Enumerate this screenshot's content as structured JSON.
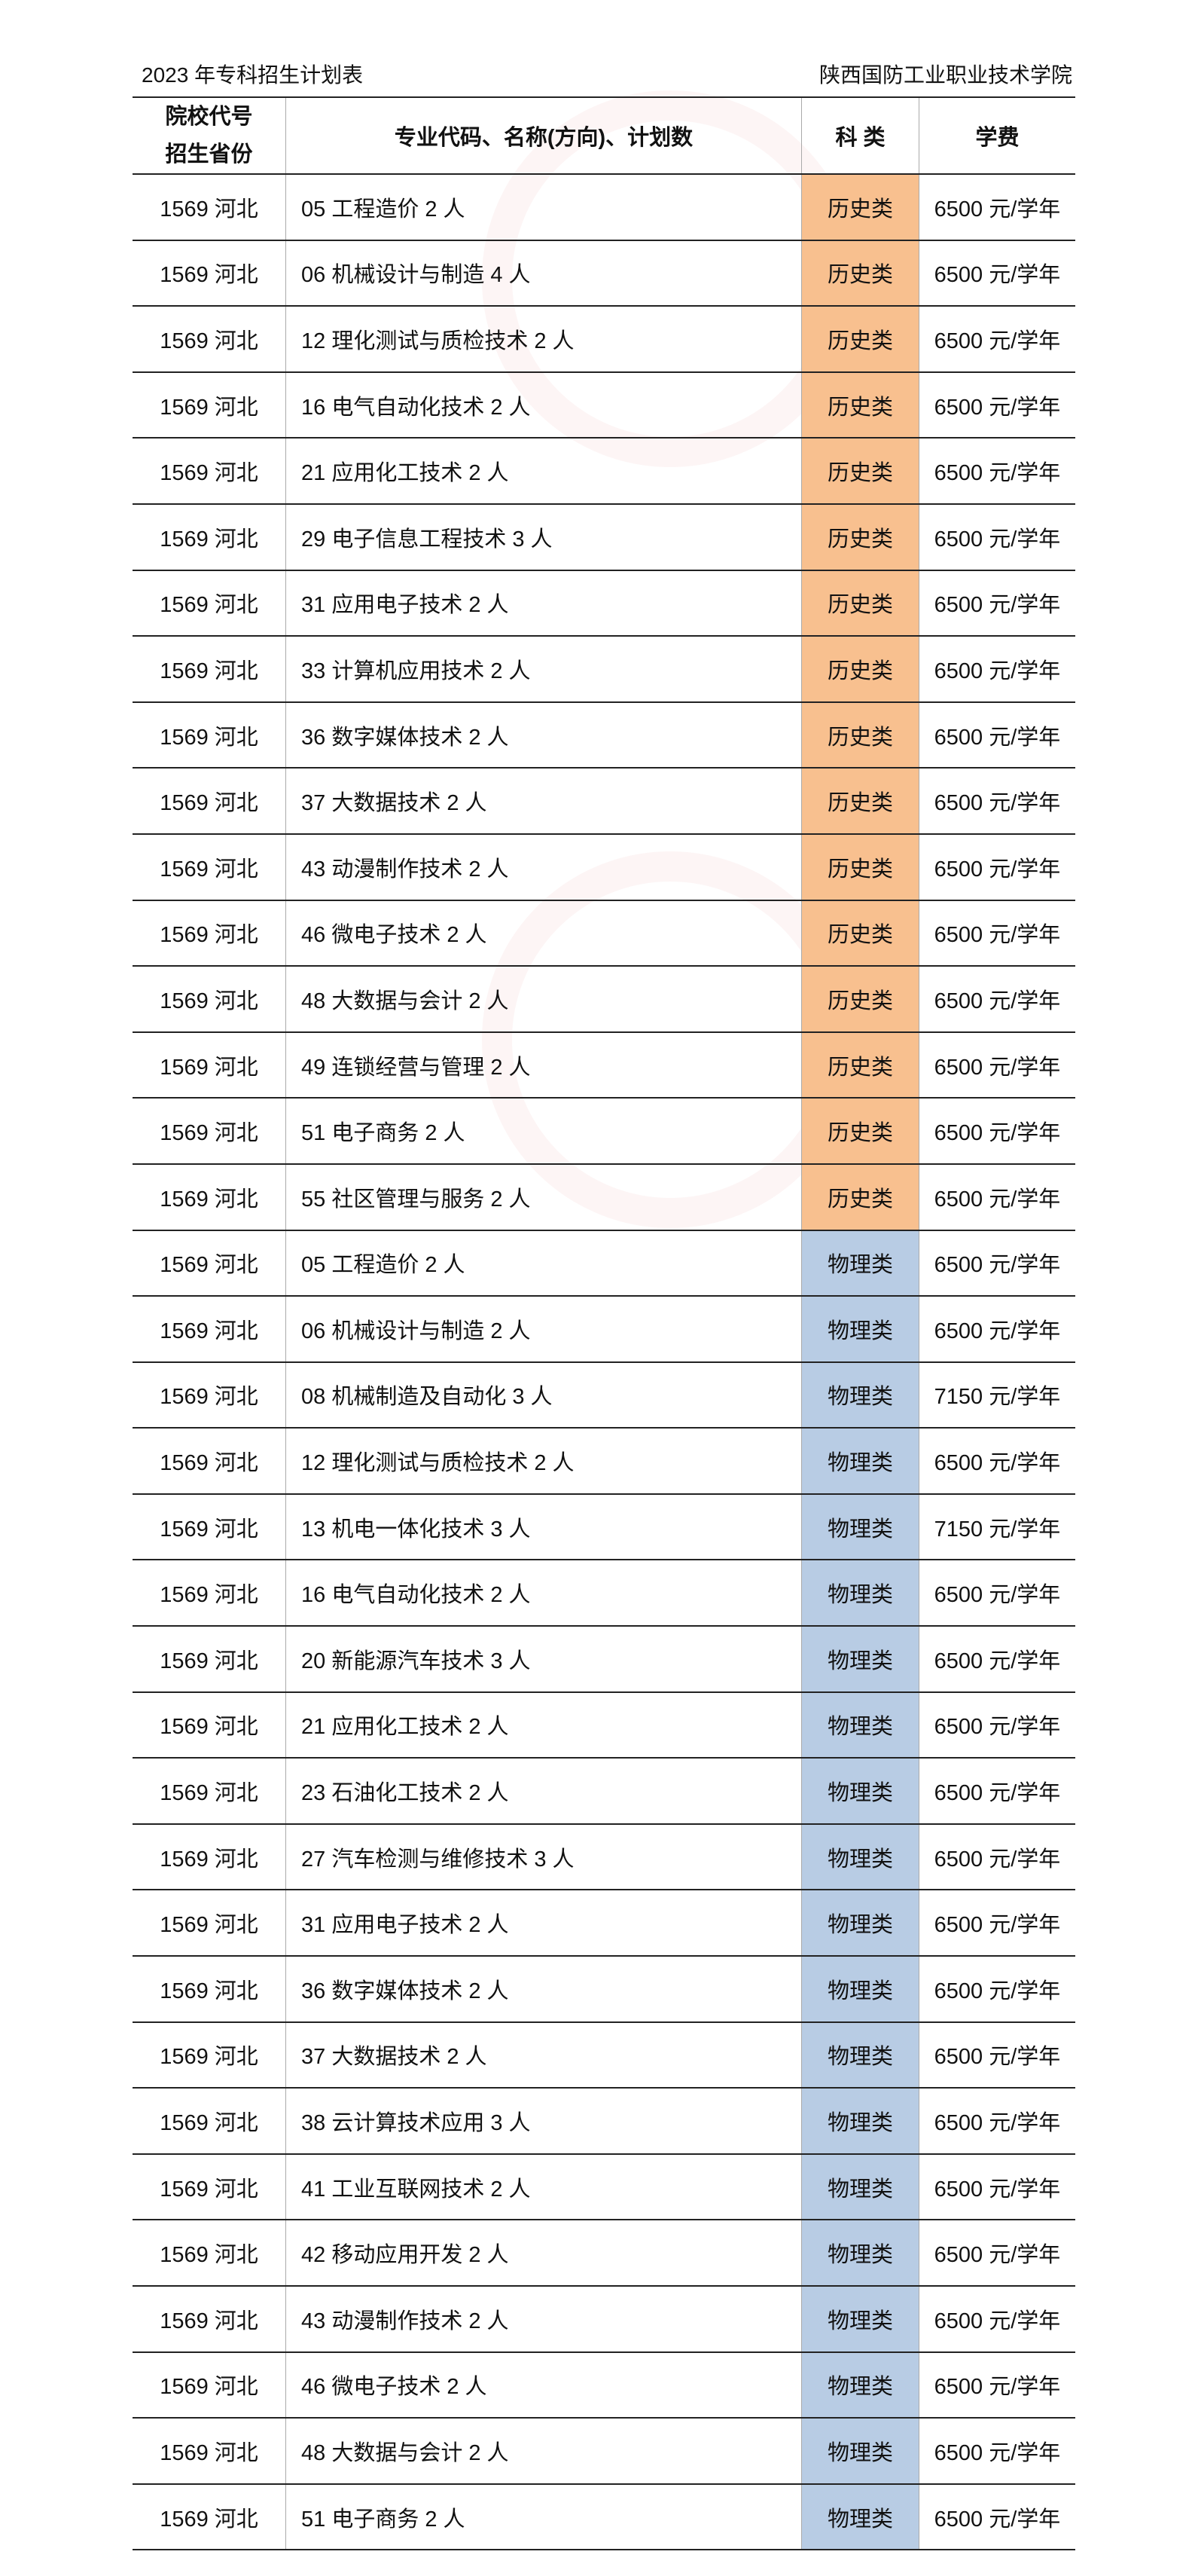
{
  "header": {
    "title": "2023 年专科招生计划表",
    "school": "陕西国防工业职业技术学院"
  },
  "table": {
    "columns": [
      "院校代号\n招生省份",
      "专业代码、名称(方向)、计划数",
      "科 类",
      "学费"
    ],
    "col1_line1": "院校代号",
    "col1_line2": "招生省份",
    "colors": {
      "历史类": "#F8C08F",
      "物理类": "#B8CCE4"
    },
    "rows": [
      [
        "1569 河北",
        "05 工程造价 2 人",
        "历史类",
        "6500 元/学年"
      ],
      [
        "1569 河北",
        "06 机械设计与制造 4 人",
        "历史类",
        "6500 元/学年"
      ],
      [
        "1569 河北",
        "12 理化测试与质检技术 2 人",
        "历史类",
        "6500 元/学年"
      ],
      [
        "1569 河北",
        "16 电气自动化技术 2 人",
        "历史类",
        "6500 元/学年"
      ],
      [
        "1569 河北",
        "21 应用化工技术 2 人",
        "历史类",
        "6500 元/学年"
      ],
      [
        "1569 河北",
        "29 电子信息工程技术 3 人",
        "历史类",
        "6500 元/学年"
      ],
      [
        "1569 河北",
        "31 应用电子技术 2 人",
        "历史类",
        "6500 元/学年"
      ],
      [
        "1569 河北",
        "33 计算机应用技术 2 人",
        "历史类",
        "6500 元/学年"
      ],
      [
        "1569 河北",
        "36 数字媒体技术 2 人",
        "历史类",
        "6500 元/学年"
      ],
      [
        "1569 河北",
        "37 大数据技术 2 人",
        "历史类",
        "6500 元/学年"
      ],
      [
        "1569 河北",
        "43 动漫制作技术 2 人",
        "历史类",
        "6500 元/学年"
      ],
      [
        "1569 河北",
        "46 微电子技术 2 人",
        "历史类",
        "6500 元/学年"
      ],
      [
        "1569 河北",
        "48 大数据与会计 2 人",
        "历史类",
        "6500 元/学年"
      ],
      [
        "1569 河北",
        "49 连锁经营与管理 2 人",
        "历史类",
        "6500 元/学年"
      ],
      [
        "1569 河北",
        "51 电子商务 2 人",
        "历史类",
        "6500 元/学年"
      ],
      [
        "1569 河北",
        "55 社区管理与服务 2 人",
        "历史类",
        "6500 元/学年"
      ],
      [
        "1569 河北",
        "05 工程造价 2 人",
        "物理类",
        "6500 元/学年"
      ],
      [
        "1569 河北",
        "06 机械设计与制造 2 人",
        "物理类",
        "6500 元/学年"
      ],
      [
        "1569 河北",
        "08 机械制造及自动化 3 人",
        "物理类",
        "7150 元/学年"
      ],
      [
        "1569 河北",
        "12 理化测试与质检技术 2 人",
        "物理类",
        "6500 元/学年"
      ],
      [
        "1569 河北",
        "13 机电一体化技术 3 人",
        "物理类",
        "7150 元/学年"
      ],
      [
        "1569 河北",
        "16 电气自动化技术 2 人",
        "物理类",
        "6500 元/学年"
      ],
      [
        "1569 河北",
        "20 新能源汽车技术 3 人",
        "物理类",
        "6500 元/学年"
      ],
      [
        "1569 河北",
        "21 应用化工技术 2 人",
        "物理类",
        "6500 元/学年"
      ],
      [
        "1569 河北",
        "23 石油化工技术 2 人",
        "物理类",
        "6500 元/学年"
      ],
      [
        "1569 河北",
        "27 汽车检测与维修技术 3 人",
        "物理类",
        "6500 元/学年"
      ],
      [
        "1569 河北",
        "31 应用电子技术 2 人",
        "物理类",
        "6500 元/学年"
      ],
      [
        "1569 河北",
        "36 数字媒体技术 2 人",
        "物理类",
        "6500 元/学年"
      ],
      [
        "1569 河北",
        "37 大数据技术 2 人",
        "物理类",
        "6500 元/学年"
      ],
      [
        "1569 河北",
        "38 云计算技术应用 3 人",
        "物理类",
        "6500 元/学年"
      ],
      [
        "1569 河北",
        "41 工业互联网技术 2 人",
        "物理类",
        "6500 元/学年"
      ],
      [
        "1569 河北",
        "42 移动应用开发 2 人",
        "物理类",
        "6500 元/学年"
      ],
      [
        "1569 河北",
        "43 动漫制作技术 2 人",
        "物理类",
        "6500 元/学年"
      ],
      [
        "1569 河北",
        "46 微电子技术 2 人",
        "物理类",
        "6500 元/学年"
      ],
      [
        "1569 河北",
        "48 大数据与会计 2 人",
        "物理类",
        "6500 元/学年"
      ],
      [
        "1569 河北",
        "51 电子商务 2 人",
        "物理类",
        "6500 元/学年"
      ]
    ]
  }
}
